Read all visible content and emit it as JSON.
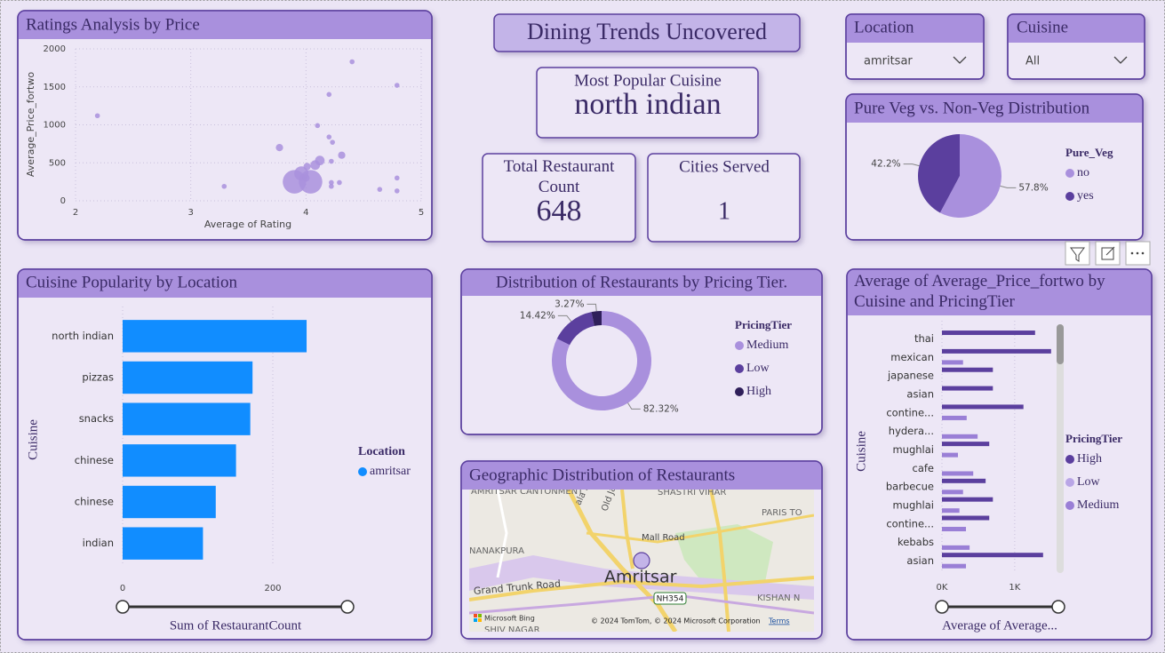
{
  "header": {
    "title": "Dining Trends Uncovered"
  },
  "cards": [
    {
      "label": "Most Popular Cuisine",
      "value": "north indian"
    },
    {
      "label": "Total Restaurant Count",
      "value": 648
    },
    {
      "label": "Cities Served",
      "value": 1
    }
  ],
  "slicers": [
    {
      "label": "Location",
      "selected": "amritsar"
    },
    {
      "label": "Cuisine",
      "selected": "All"
    }
  ],
  "map": {
    "title": "Geographic Distribution of Restaurants",
    "labels": [
      "AMRITSAR CANTONMENT",
      "SHASTRI VIHAR",
      "ala Road",
      "Old Jail",
      "PARIS TO",
      "Mall Road",
      "NANAKPURA",
      "Grand Trunk Road",
      "Amritsar",
      "NH354",
      "KISHAN N",
      "SHIV NAGAR"
    ],
    "provider": "Microsoft Bing",
    "credits": "© 2024 TomTom, © 2024 Microsoft Corporation",
    "terms": "Terms"
  },
  "chart_data": [
    {
      "type": "scatter",
      "title": "Ratings Analysis by Price",
      "x_label": "Average of Rating",
      "y_label": "Average_Price_fortwo",
      "color": "#a990dd",
      "grid": true,
      "xlim": [
        2,
        5
      ],
      "xticks": [
        2,
        3,
        4,
        5
      ],
      "ylim": [
        0,
        2000
      ],
      "yticks": [
        0,
        500,
        1000,
        1500,
        2000
      ],
      "x": [
        4.4,
        4.79,
        2.19,
        4.2,
        4.1,
        4.2,
        4.23,
        3.77,
        4.31,
        4.12,
        4.08,
        4.01,
        4.22,
        3.96,
        3.9,
        4.04,
        4.22,
        4.29,
        3.29,
        4.22,
        4.64,
        4.79,
        4.79,
        4.0
      ],
      "values": [
        1830,
        1520,
        1120,
        1400,
        990,
        840,
        770,
        700,
        600,
        530,
        470,
        450,
        520,
        360,
        250,
        250,
        240,
        240,
        190,
        190,
        150,
        300,
        130,
        300
      ],
      "sizes": [
        1,
        1,
        1,
        1,
        1,
        1,
        1,
        2,
        2,
        3,
        3,
        2,
        1,
        5,
        9,
        9,
        1,
        1,
        1,
        1,
        1,
        1,
        1,
        2
      ]
    },
    {
      "type": "hbar",
      "title": "Cuisine Popularity by Location",
      "x_label": "Sum of RestaurantCount",
      "y_label": "Cuisine",
      "legend_title": "Location",
      "grid": true,
      "categories": [
        "north indian",
        "pizzas",
        "snacks",
        "chinese",
        "chinese",
        "indian"
      ],
      "xlim": [
        0,
        400
      ],
      "xticks": [
        0,
        200
      ],
      "series": [
        {
          "name": "amritsar",
          "color": "#118dff",
          "values": [
            245,
            173,
            170,
            151,
            124,
            107
          ]
        }
      ]
    },
    {
      "type": "donut",
      "title": "Distribution of Restaurants by Pricing Tier.",
      "legend_title": "PricingTier",
      "categories": [
        "Medium",
        "Low",
        "High"
      ],
      "values": [
        82.32,
        14.42,
        3.27
      ],
      "value_labels": [
        "82.32%",
        "14.42%",
        "3.27%"
      ],
      "colors": [
        "#a990dd",
        "#5b3f9e",
        "#2f1f5a"
      ]
    },
    {
      "type": "pie",
      "title": "Pure Veg vs. Non-Veg Distribution",
      "legend_title": "Pure_Veg",
      "categories": [
        "no",
        "yes"
      ],
      "values": [
        57.8,
        42.2
      ],
      "value_labels": [
        "57.8%",
        "42.2%"
      ],
      "colors": [
        "#a990dd",
        "#5b3f9e"
      ]
    },
    {
      "type": "hbar",
      "title": "Average of Average_Price_fortwo by Cuisine and PricingTier",
      "x_label": "Average of Average...",
      "y_label": "Cuisine",
      "legend_title": "PricingTier",
      "grid": true,
      "categories": [
        "thai",
        "mexican",
        "japanese",
        "asian",
        "contine...",
        "hydera...",
        "mughlai",
        "cafe",
        "barbecue",
        "mughlai",
        "contine...",
        "kebabs",
        "asian"
      ],
      "xlim": [
        0,
        1600
      ],
      "xticks": [
        {
          "value": 0,
          "label": "0K"
        },
        {
          "value": 1000,
          "label": "1K"
        }
      ],
      "series": [
        {
          "name": "High",
          "color": "#5b3f9e",
          "values": [
            1280,
            1500,
            700,
            700,
            1120,
            null,
            650,
            null,
            600,
            700,
            650,
            null,
            1390
          ]
        },
        {
          "name": "Low",
          "color": "#b9a6e6",
          "values": [
            null,
            null,
            null,
            null,
            null,
            null,
            null,
            null,
            null,
            null,
            null,
            null,
            null
          ]
        },
        {
          "name": "Medium",
          "color": "#9a7fd6",
          "values": [
            null,
            290,
            null,
            null,
            340,
            490,
            220,
            430,
            290,
            240,
            330,
            380,
            330
          ]
        }
      ]
    }
  ]
}
